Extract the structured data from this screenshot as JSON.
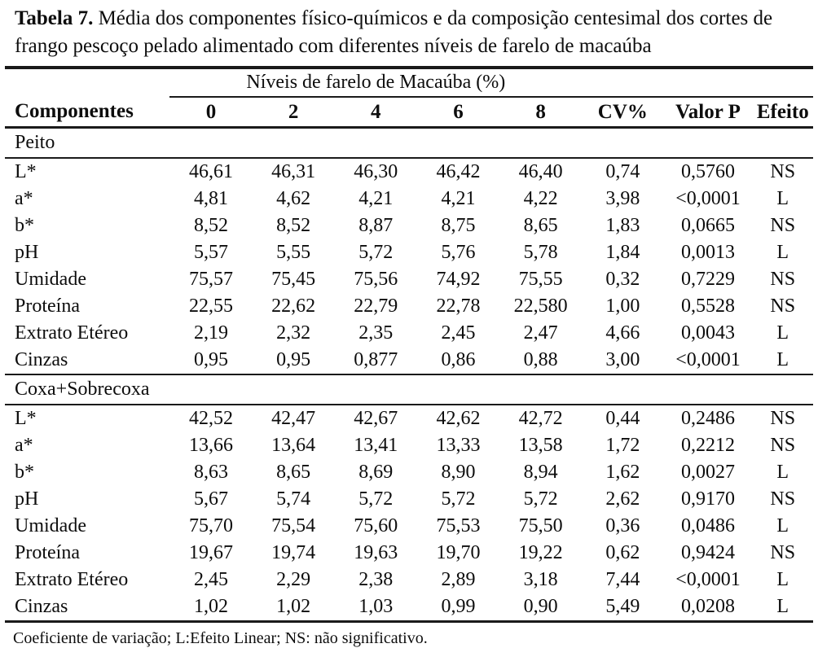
{
  "page": {
    "title": {
      "label": "Tabela 7.",
      "text": "Média dos componentes físico-químicos e da composição centesimal dos cortes de frango pescoço pelado alimentado com diferentes níveis de farelo de macaúba"
    },
    "footnote": "Coeficiente de variação; L:Efeito Linear; NS: não significativo."
  },
  "table": {
    "spanner_label": "Níveis de farelo de Macaúba (%)",
    "columns": [
      "Componentes",
      "0",
      "2",
      "4",
      "6",
      "8",
      "CV%",
      "Valor P",
      "Efeito"
    ],
    "sections": [
      {
        "name": "Peito",
        "rows": [
          {
            "label": "L*",
            "values": [
              "46,61",
              "46,31",
              "46,30",
              "46,42",
              "46,40",
              "0,74",
              "0,5760",
              "NS"
            ]
          },
          {
            "label": "a*",
            "values": [
              "4,81",
              "4,62",
              "4,21",
              "4,21",
              "4,22",
              "3,98",
              "<0,0001",
              "L"
            ]
          },
          {
            "label": "b*",
            "values": [
              "8,52",
              "8,52",
              "8,87",
              "8,75",
              "8,65",
              "1,83",
              "0,0665",
              "NS"
            ]
          },
          {
            "label": "pH",
            "values": [
              "5,57",
              "5,55",
              "5,72",
              "5,76",
              "5,78",
              "1,84",
              "0,0013",
              "L"
            ]
          },
          {
            "label": "Umidade",
            "values": [
              "75,57",
              "75,45",
              "75,56",
              "74,92",
              "75,55",
              "0,32",
              "0,7229",
              "NS"
            ]
          },
          {
            "label": "Proteína",
            "values": [
              "22,55",
              "22,62",
              "22,79",
              "22,78",
              "22,580",
              "1,00",
              "0,5528",
              "NS"
            ]
          },
          {
            "label": "Extrato Etéreo",
            "values": [
              "2,19",
              "2,32",
              "2,35",
              "2,45",
              "2,47",
              "4,66",
              "0,0043",
              "L"
            ]
          },
          {
            "label": "Cinzas",
            "values": [
              "0,95",
              "0,95",
              "0,877",
              "0,86",
              "0,88",
              "3,00",
              "<0,0001",
              "L"
            ]
          }
        ]
      },
      {
        "name": "Coxa+Sobrecoxa",
        "rows": [
          {
            "label": "L*",
            "values": [
              "42,52",
              "42,47",
              "42,67",
              "42,62",
              "42,72",
              "0,44",
              "0,2486",
              "NS"
            ]
          },
          {
            "label": "a*",
            "values": [
              "13,66",
              "13,64",
              "13,41",
              "13,33",
              "13,58",
              "1,72",
              "0,2212",
              "NS"
            ]
          },
          {
            "label": "b*",
            "values": [
              "8,63",
              "8,65",
              "8,69",
              "8,90",
              "8,94",
              "1,62",
              "0,0027",
              "L"
            ]
          },
          {
            "label": "pH",
            "values": [
              "5,67",
              "5,74",
              "5,72",
              "5,72",
              "5,72",
              "2,62",
              "0,9170",
              "NS"
            ]
          },
          {
            "label": "Umidade",
            "values": [
              "75,70",
              "75,54",
              "75,60",
              "75,53",
              "75,50",
              "0,36",
              "0,0486",
              "L"
            ]
          },
          {
            "label": "Proteína",
            "values": [
              "19,67",
              "19,74",
              "19,63",
              "19,70",
              "19,22",
              "0,62",
              "0,9424",
              "NS"
            ]
          },
          {
            "label": "Extrato Etéreo",
            "values": [
              "2,45",
              "2,29",
              "2,38",
              "2,89",
              "3,18",
              "7,44",
              "<0,0001",
              "L"
            ]
          },
          {
            "label": "Cinzas",
            "values": [
              "1,02",
              "1,02",
              "1,03",
              "0,99",
              "0,90",
              "5,49",
              "0,0208",
              "L"
            ]
          }
        ]
      }
    ]
  }
}
